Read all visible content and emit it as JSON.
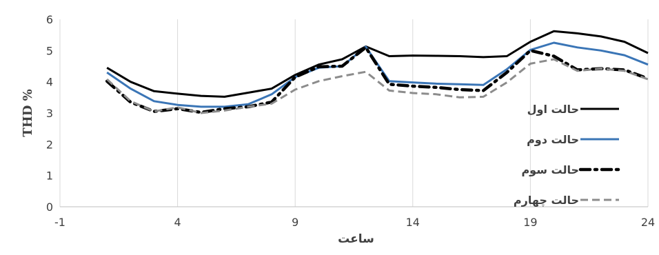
{
  "chart_data": {
    "type": "line",
    "xlabel": "ساعت",
    "ylabel": "THD %",
    "xlim": [
      -1,
      24
    ],
    "ylim": [
      0,
      6
    ],
    "xticks": [
      -1,
      4,
      9,
      14,
      19,
      24
    ],
    "yticks": [
      0,
      1,
      2,
      3,
      4,
      5,
      6
    ],
    "grid": "vertical-major",
    "legend_position": "right",
    "x": [
      1,
      2,
      3,
      4,
      5,
      6,
      7,
      8,
      9,
      10,
      11,
      12,
      13,
      14,
      15,
      16,
      17,
      18,
      19,
      20,
      21,
      22,
      23,
      24
    ],
    "series": [
      {
        "name": "حالت اول",
        "color": "#000000",
        "style": "solid",
        "values": [
          4.45,
          4.0,
          3.7,
          3.62,
          3.55,
          3.52,
          3.65,
          3.78,
          4.22,
          4.55,
          4.72,
          5.13,
          4.82,
          4.84,
          4.83,
          4.82,
          4.79,
          4.82,
          5.28,
          5.62,
          5.55,
          5.45,
          5.28,
          4.92
        ]
      },
      {
        "name": "حالت دوم",
        "color": "#3a75b6",
        "style": "solid",
        "values": [
          4.3,
          3.78,
          3.38,
          3.26,
          3.2,
          3.2,
          3.28,
          3.6,
          4.15,
          4.45,
          4.5,
          5.12,
          4.02,
          3.98,
          3.94,
          3.92,
          3.9,
          4.4,
          5.02,
          5.25,
          5.1,
          5.0,
          4.85,
          4.55
        ]
      },
      {
        "name": "حالت سوم",
        "color": "#000000",
        "style": "dash-dot",
        "values": [
          4.02,
          3.35,
          3.05,
          3.14,
          3.02,
          3.14,
          3.2,
          3.35,
          4.15,
          4.48,
          4.5,
          5.1,
          3.92,
          3.86,
          3.82,
          3.75,
          3.72,
          4.3,
          5.0,
          4.82,
          4.38,
          4.42,
          4.38,
          4.1
        ]
      },
      {
        "name": "حالت چهارم",
        "color": "#8c8c8c",
        "style": "dashed",
        "values": [
          4.08,
          3.38,
          3.05,
          3.18,
          3.0,
          3.08,
          3.2,
          3.3,
          3.75,
          4.02,
          4.18,
          4.32,
          3.72,
          3.64,
          3.6,
          3.5,
          3.52,
          3.98,
          4.58,
          4.72,
          4.35,
          4.42,
          4.35,
          4.08
        ]
      }
    ]
  }
}
